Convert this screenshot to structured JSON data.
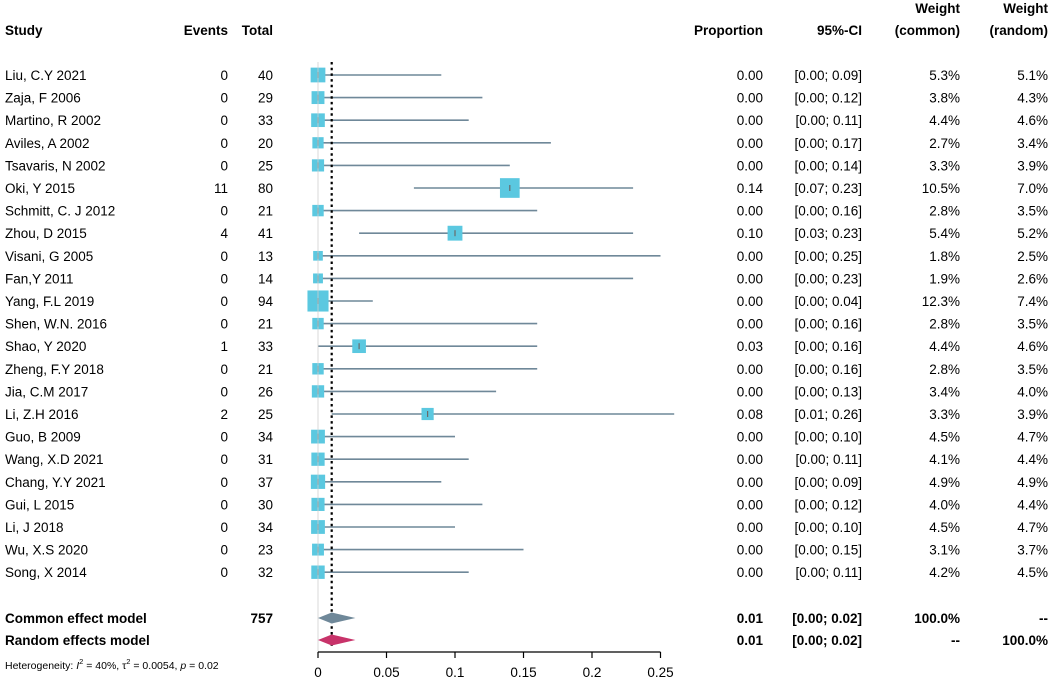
{
  "chart_data": {
    "type": "forest",
    "headers": {
      "study": "Study",
      "events": "Events",
      "total": "Total",
      "proportion": "Proportion",
      "ci": "95%-CI",
      "weight_common": [
        "Weight",
        "(common)"
      ],
      "weight_random": [
        "Weight",
        "(random)"
      ]
    },
    "studies": [
      {
        "name": "Liu, C.Y 2021",
        "events": "0",
        "total": "40",
        "prop": 0.0,
        "lo": 0.0,
        "hi": 0.09,
        "prop_text": "0.00",
        "ci_text": "[0.00; 0.09]",
        "w_common": "5.3%",
        "w_random": "5.1%",
        "w": 5.3
      },
      {
        "name": "Zaja, F 2006",
        "events": "0",
        "total": "29",
        "prop": 0.0,
        "lo": 0.0,
        "hi": 0.12,
        "prop_text": "0.00",
        "ci_text": "[0.00; 0.12]",
        "w_common": "3.8%",
        "w_random": "4.3%",
        "w": 3.8
      },
      {
        "name": "Martino, R 2002",
        "events": "0",
        "total": "33",
        "prop": 0.0,
        "lo": 0.0,
        "hi": 0.11,
        "prop_text": "0.00",
        "ci_text": "[0.00; 0.11]",
        "w_common": "4.4%",
        "w_random": "4.6%",
        "w": 4.4
      },
      {
        "name": "Aviles, A 2002",
        "events": "0",
        "total": "20",
        "prop": 0.0,
        "lo": 0.0,
        "hi": 0.17,
        "prop_text": "0.00",
        "ci_text": "[0.00; 0.17]",
        "w_common": "2.7%",
        "w_random": "3.4%",
        "w": 2.7
      },
      {
        "name": "Tsavaris, N 2002",
        "events": "0",
        "total": "25",
        "prop": 0.0,
        "lo": 0.0,
        "hi": 0.14,
        "prop_text": "0.00",
        "ci_text": "[0.00; 0.14]",
        "w_common": "3.3%",
        "w_random": "3.9%",
        "w": 3.3
      },
      {
        "name": "Oki, Y 2015",
        "events": "11",
        "total": "80",
        "prop": 0.14,
        "lo": 0.07,
        "hi": 0.23,
        "prop_text": "0.14",
        "ci_text": "[0.07; 0.23]",
        "w_common": "10.5%",
        "w_random": "7.0%",
        "w": 10.5
      },
      {
        "name": "Schmitt, C. J 2012",
        "events": "0",
        "total": "21",
        "prop": 0.0,
        "lo": 0.0,
        "hi": 0.16,
        "prop_text": "0.00",
        "ci_text": "[0.00; 0.16]",
        "w_common": "2.8%",
        "w_random": "3.5%",
        "w": 2.8
      },
      {
        "name": "Zhou, D 2015",
        "events": "4",
        "total": "41",
        "prop": 0.1,
        "lo": 0.03,
        "hi": 0.23,
        "prop_text": "0.10",
        "ci_text": "[0.03; 0.23]",
        "w_common": "5.4%",
        "w_random": "5.2%",
        "w": 5.4
      },
      {
        "name": "Visani, G 2005",
        "events": "0",
        "total": "13",
        "prop": 0.0,
        "lo": 0.0,
        "hi": 0.25,
        "prop_text": "0.00",
        "ci_text": "[0.00; 0.25]",
        "w_common": "1.8%",
        "w_random": "2.5%",
        "w": 1.8
      },
      {
        "name": "Fan,Y 2011",
        "events": "0",
        "total": "14",
        "prop": 0.0,
        "lo": 0.0,
        "hi": 0.23,
        "prop_text": "0.00",
        "ci_text": "[0.00; 0.23]",
        "w_common": "1.9%",
        "w_random": "2.6%",
        "w": 1.9
      },
      {
        "name": "Yang, F.L 2019",
        "events": "0",
        "total": "94",
        "prop": 0.0,
        "lo": 0.0,
        "hi": 0.04,
        "prop_text": "0.00",
        "ci_text": "[0.00; 0.04]",
        "w_common": "12.3%",
        "w_random": "7.4%",
        "w": 12.3
      },
      {
        "name": "Shen, W.N. 2016",
        "events": "0",
        "total": "21",
        "prop": 0.0,
        "lo": 0.0,
        "hi": 0.16,
        "prop_text": "0.00",
        "ci_text": "[0.00; 0.16]",
        "w_common": "2.8%",
        "w_random": "3.5%",
        "w": 2.8
      },
      {
        "name": "Shao, Y 2020",
        "events": "1",
        "total": "33",
        "prop": 0.03,
        "lo": 0.0,
        "hi": 0.16,
        "prop_text": "0.03",
        "ci_text": "[0.00; 0.16]",
        "w_common": "4.4%",
        "w_random": "4.6%",
        "w": 4.4
      },
      {
        "name": "Zheng, F.Y 2018",
        "events": "0",
        "total": "21",
        "prop": 0.0,
        "lo": 0.0,
        "hi": 0.16,
        "prop_text": "0.00",
        "ci_text": "[0.00; 0.16]",
        "w_common": "2.8%",
        "w_random": "3.5%",
        "w": 2.8
      },
      {
        "name": "Jia, C.M 2017",
        "events": "0",
        "total": "26",
        "prop": 0.0,
        "lo": 0.0,
        "hi": 0.13,
        "prop_text": "0.00",
        "ci_text": "[0.00; 0.13]",
        "w_common": "3.4%",
        "w_random": "4.0%",
        "w": 3.4
      },
      {
        "name": "Li, Z.H 2016",
        "events": "2",
        "total": "25",
        "prop": 0.08,
        "lo": 0.01,
        "hi": 0.26,
        "prop_text": "0.08",
        "ci_text": "[0.01; 0.26]",
        "w_common": "3.3%",
        "w_random": "3.9%",
        "w": 3.3
      },
      {
        "name": "Guo, B 2009",
        "events": "0",
        "total": "34",
        "prop": 0.0,
        "lo": 0.0,
        "hi": 0.1,
        "prop_text": "0.00",
        "ci_text": "[0.00; 0.10]",
        "w_common": "4.5%",
        "w_random": "4.7%",
        "w": 4.5
      },
      {
        "name": "Wang, X.D 2021",
        "events": "0",
        "total": "31",
        "prop": 0.0,
        "lo": 0.0,
        "hi": 0.11,
        "prop_text": "0.00",
        "ci_text": "[0.00; 0.11]",
        "w_common": "4.1%",
        "w_random": "4.4%",
        "w": 4.1
      },
      {
        "name": "Chang, Y.Y 2021",
        "events": "0",
        "total": "37",
        "prop": 0.0,
        "lo": 0.0,
        "hi": 0.09,
        "prop_text": "0.00",
        "ci_text": "[0.00; 0.09]",
        "w_common": "4.9%",
        "w_random": "4.9%",
        "w": 4.9
      },
      {
        "name": "Gui, L 2015",
        "events": "0",
        "total": "30",
        "prop": 0.0,
        "lo": 0.0,
        "hi": 0.12,
        "prop_text": "0.00",
        "ci_text": "[0.00; 0.12]",
        "w_common": "4.0%",
        "w_random": "4.4%",
        "w": 4.0
      },
      {
        "name": "Li, J 2018",
        "events": "0",
        "total": "34",
        "prop": 0.0,
        "lo": 0.0,
        "hi": 0.1,
        "prop_text": "0.00",
        "ci_text": "[0.00; 0.10]",
        "w_common": "4.5%",
        "w_random": "4.7%",
        "w": 4.5
      },
      {
        "name": "Wu, X.S 2020",
        "events": "0",
        "total": "23",
        "prop": 0.0,
        "lo": 0.0,
        "hi": 0.15,
        "prop_text": "0.00",
        "ci_text": "[0.00; 0.15]",
        "w_common": "3.1%",
        "w_random": "3.7%",
        "w": 3.1
      },
      {
        "name": "Song, X 2014",
        "events": "0",
        "total": "32",
        "prop": 0.0,
        "lo": 0.0,
        "hi": 0.11,
        "prop_text": "0.00",
        "ci_text": "[0.00; 0.11]",
        "w_common": "4.2%",
        "w_random": "4.5%",
        "w": 4.2
      }
    ],
    "common": {
      "label": "Common effect model",
      "total": "757",
      "est": 0.01,
      "lo": 0.0,
      "hi": 0.02,
      "prop_text": "0.01",
      "ci_text": "[0.00; 0.02]",
      "w_common": "100.0%",
      "w_random": "--",
      "color": "#6f8899"
    },
    "random": {
      "label": "Random effects model",
      "est": 0.01,
      "lo": 0.0,
      "hi": 0.02,
      "prop_text": "0.01",
      "ci_text": "[0.00; 0.02]",
      "w_common": "--",
      "w_random": "100.0%",
      "color": "#c8336a"
    },
    "heterogeneity": {
      "prefix": "Heterogeneity: ",
      "i_sym": "I",
      "i_sup": "2",
      "i_val": " = 40%, ",
      "tau_sym": "τ",
      "tau_sup": "2",
      "tau_val": " = 0.0054, ",
      "p_sym": "p",
      "p_val": " = 0.02"
    },
    "x_axis": {
      "range": [
        0,
        0.25
      ],
      "ticks": [
        0,
        0.05,
        0.1,
        0.15,
        0.2,
        0.25
      ],
      "tick_labels": [
        "0",
        "0.05",
        "0.1",
        "0.15",
        "0.2",
        "0.25"
      ]
    },
    "reference_line": 0.01,
    "colors": {
      "box": "#5bc8e0",
      "ci_line": "#6f8899",
      "axis": "#000000"
    }
  }
}
